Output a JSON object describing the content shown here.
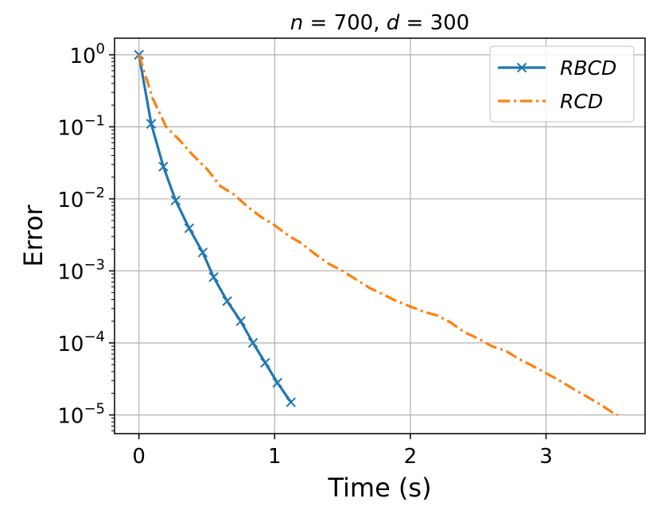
{
  "chart_data": {
    "type": "line",
    "title": "n = 700, d = 300",
    "xlabel": "Time (s)",
    "ylabel": "Error",
    "xscale": "linear",
    "yscale": "log",
    "xlim": [
      -0.18,
      3.73
    ],
    "ylim": [
      5.5e-06,
      1.7
    ],
    "xticks": [
      0,
      1,
      2,
      3
    ],
    "xtick_labels": [
      "0",
      "1",
      "2",
      "3"
    ],
    "yticks": [
      1,
      0.1,
      0.01,
      0.001,
      0.0001,
      1e-05
    ],
    "ytick_labels": [
      {
        "base": "10",
        "exp": "0"
      },
      {
        "base": "10",
        "exp": "−1"
      },
      {
        "base": "10",
        "exp": "−2"
      },
      {
        "base": "10",
        "exp": "−3"
      },
      {
        "base": "10",
        "exp": "−4"
      },
      {
        "base": "10",
        "exp": "−5"
      }
    ],
    "grid": true,
    "legend_position": "top-right",
    "series": [
      {
        "name": "RBCD",
        "color": "#1f77b4",
        "line_style": "solid",
        "marker": "x",
        "x": [
          0.0,
          0.09,
          0.18,
          0.27,
          0.37,
          0.47,
          0.55,
          0.65,
          0.75,
          0.84,
          0.93,
          1.02,
          1.12
        ],
        "y": [
          1.0,
          0.11,
          0.028,
          0.0095,
          0.0039,
          0.0018,
          0.00082,
          0.00038,
          0.0002,
          0.0001,
          5.3e-05,
          2.8e-05,
          1.5e-05
        ]
      },
      {
        "name": "RCD",
        "color": "#ff7f0e",
        "line_style": "dashdot",
        "marker": "none",
        "x": [
          0.0,
          0.1,
          0.2,
          0.3,
          0.4,
          0.5,
          0.6,
          0.7,
          0.8,
          0.9,
          1.0,
          1.1,
          1.2,
          1.3,
          1.4,
          1.5,
          1.6,
          1.7,
          1.8,
          1.9,
          2.0,
          2.1,
          2.2,
          2.3,
          2.4,
          2.5,
          2.6,
          2.7,
          2.8,
          2.9,
          3.0,
          3.1,
          3.2,
          3.3,
          3.4,
          3.5,
          3.53
        ],
        "y": [
          1.0,
          0.25,
          0.1,
          0.065,
          0.04,
          0.026,
          0.015,
          0.0115,
          0.0078,
          0.0056,
          0.0043,
          0.0031,
          0.0024,
          0.0017,
          0.00125,
          0.001,
          0.00076,
          0.00058,
          0.00047,
          0.00038,
          0.00032,
          0.00027,
          0.00024,
          0.00019,
          0.00014,
          0.000115,
          9e-05,
          7.8e-05,
          6e-05,
          4.8e-05,
          3.8e-05,
          3e-05,
          2.3e-05,
          1.8e-05,
          1.4e-05,
          1.05e-05,
          1e-05
        ]
      }
    ]
  }
}
